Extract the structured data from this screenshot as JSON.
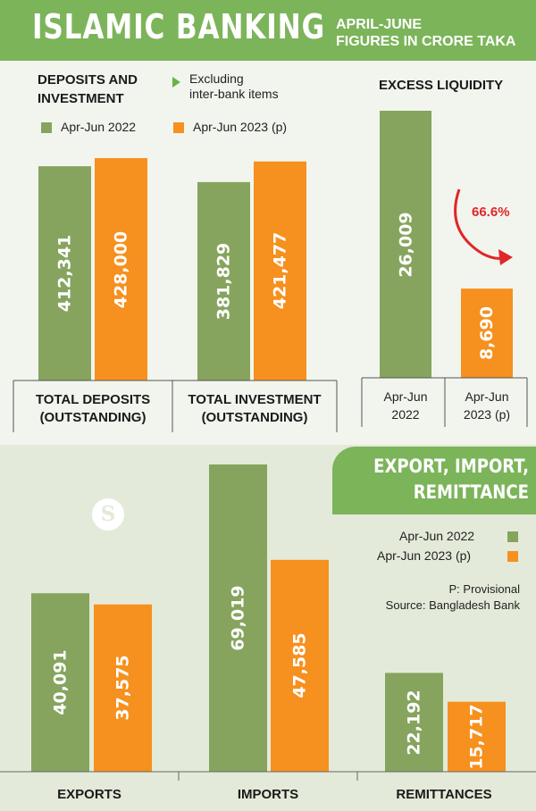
{
  "header": {
    "title": "ISLAMIC BANKING",
    "subtitle": "April-June\nfigures in crore Taka"
  },
  "colors": {
    "green": "#86a45e",
    "orange": "#f6901e",
    "header_green": "#7cb45a",
    "arrow_red": "#e0262a"
  },
  "legend": {
    "series1": "Apr-Jun 2022",
    "series2": "Apr-Jun 2023 (p)"
  },
  "note": "Excluding\ninter-bank items",
  "footnote": "P: Provisional",
  "source": "Source: Bangladesh Bank",
  "logo_text": "S",
  "chart_data": [
    {
      "type": "bar",
      "title": "DEPOSITS AND\nINVESTMENT",
      "categories": [
        "TOTAL DEPOSITS\n(OUTSTANDING)",
        "TOTAL INVESTMENT\n(OUTSTANDING)"
      ],
      "series": [
        {
          "name": "Apr-Jun 2022",
          "values": [
            412341,
            381829
          ],
          "labels": [
            "412,341",
            "381,829"
          ]
        },
        {
          "name": "Apr-Jun 2023 (p)",
          "values": [
            428000,
            421477
          ],
          "labels": [
            "428,000",
            "421,477"
          ]
        }
      ]
    },
    {
      "type": "bar",
      "title": "EXCESS LIQUIDITY",
      "categories": [
        "Apr-Jun\n2022",
        "Apr-Jun\n2023 (p)"
      ],
      "values": [
        26009,
        8690
      ],
      "labels": [
        "26,009",
        "8,690"
      ],
      "annotation": "66.6%"
    },
    {
      "type": "bar",
      "title": "EXPORT, IMPORT,\nREMITTANCE",
      "categories": [
        "EXPORTS",
        "IMPORTS",
        "REMITTANCES"
      ],
      "series": [
        {
          "name": "Apr-Jun 2022",
          "values": [
            40091,
            69019,
            22192
          ],
          "labels": [
            "40,091",
            "69,019",
            "22,192"
          ]
        },
        {
          "name": "Apr-Jun 2023 (p)",
          "values": [
            37575,
            47585,
            15717
          ],
          "labels": [
            "37,575",
            "47,585",
            "15,717"
          ]
        }
      ]
    }
  ]
}
